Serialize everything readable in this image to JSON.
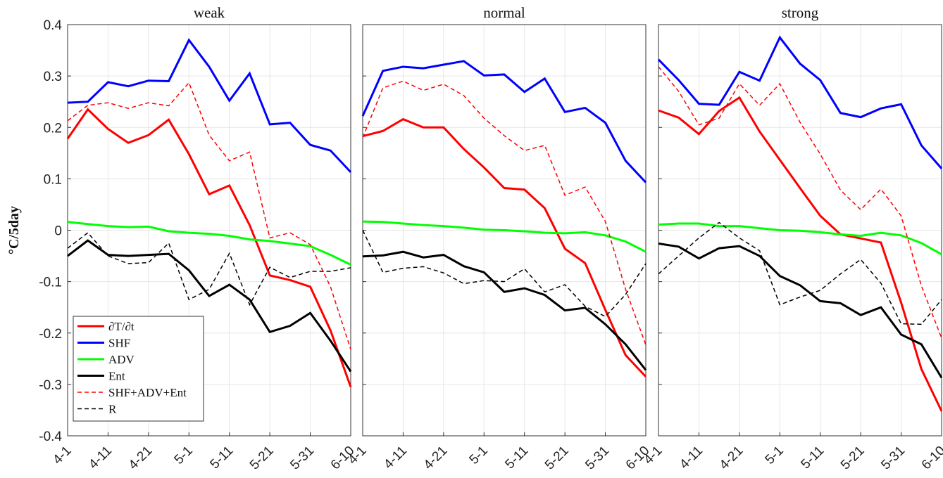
{
  "chart_data": [
    {
      "type": "line",
      "title": "weak",
      "ylabel": "°C/5day",
      "legend": "lower left",
      "grid": true,
      "categories": [
        "4-1",
        null,
        "4-11",
        null,
        "4-21",
        null,
        "5-1",
        null,
        "5-11",
        null,
        "5-21",
        null,
        "5-31",
        null,
        "6-10"
      ],
      "ylim": [
        -0.4,
        0.4
      ],
      "yticks": [
        -0.4,
        -0.3,
        -0.2,
        -0.1,
        0,
        0.1,
        0.2,
        0.3,
        0.4
      ],
      "series": [
        {
          "name": "∂T/∂t",
          "color": "#ff0000",
          "linestyle": "solid",
          "values": [
            0.178,
            0.235,
            0.197,
            0.17,
            0.185,
            0.215,
            0.148,
            0.07,
            0.087,
            0.01,
            -0.088,
            -0.097,
            -0.11,
            -0.195,
            -0.305
          ]
        },
        {
          "name": "SHF",
          "color": "#0000ff",
          "linestyle": "solid",
          "values": [
            0.248,
            0.25,
            0.288,
            0.28,
            0.291,
            0.29,
            0.37,
            0.318,
            0.252,
            0.305,
            0.206,
            0.209,
            0.166,
            0.155,
            0.113
          ]
        },
        {
          "name": "ADV",
          "color": "#00ff00",
          "linestyle": "solid",
          "values": [
            0.016,
            0.012,
            0.008,
            0.006,
            0.007,
            -0.002,
            -0.005,
            -0.007,
            -0.011,
            -0.018,
            -0.021,
            -0.026,
            -0.031,
            -0.048,
            -0.067
          ]
        },
        {
          "name": "Ent",
          "color": "#000000",
          "linestyle": "solid",
          "values": [
            -0.05,
            -0.02,
            -0.048,
            -0.05,
            -0.048,
            -0.046,
            -0.078,
            -0.128,
            -0.106,
            -0.135,
            -0.198,
            -0.186,
            -0.161,
            -0.215,
            -0.275
          ]
        },
        {
          "name": "SHF+ADV+Ent",
          "color": "#ff0000",
          "linestyle": "dashed",
          "values": [
            0.213,
            0.243,
            0.248,
            0.237,
            0.248,
            0.242,
            0.287,
            0.185,
            0.135,
            0.152,
            -0.015,
            -0.005,
            -0.028,
            -0.11,
            -0.232
          ]
        },
        {
          "name": "R",
          "color": "#000000",
          "linestyle": "dashed",
          "values": [
            -0.035,
            -0.005,
            -0.05,
            -0.065,
            -0.063,
            -0.025,
            -0.135,
            -0.115,
            -0.045,
            -0.145,
            -0.072,
            -0.092,
            -0.08,
            -0.08,
            -0.073
          ]
        }
      ]
    },
    {
      "type": "line",
      "title": "normal",
      "grid": true,
      "categories": [
        "4-1",
        null,
        "4-11",
        null,
        "4-21",
        null,
        "5-1",
        null,
        "5-11",
        null,
        "5-21",
        null,
        "5-31",
        null,
        "6-10"
      ],
      "ylim": [
        -0.4,
        0.4
      ],
      "yticks": [
        -0.4,
        -0.3,
        -0.2,
        -0.1,
        0,
        0.1,
        0.2,
        0.3,
        0.4
      ],
      "series": [
        {
          "name": "∂T/∂t",
          "color": "#ff0000",
          "linestyle": "solid",
          "values": [
            0.183,
            0.193,
            0.216,
            0.2,
            0.2,
            0.158,
            0.122,
            0.082,
            0.079,
            0.043,
            -0.036,
            -0.064,
            -0.155,
            -0.243,
            -0.285
          ]
        },
        {
          "name": "SHF",
          "color": "#0000ff",
          "linestyle": "solid",
          "values": [
            0.222,
            0.31,
            0.318,
            0.315,
            0.322,
            0.329,
            0.301,
            0.303,
            0.269,
            0.295,
            0.23,
            0.238,
            0.209,
            0.135,
            0.093
          ]
        },
        {
          "name": "ADV",
          "color": "#00ff00",
          "linestyle": "solid",
          "values": [
            0.017,
            0.016,
            0.013,
            0.01,
            0.008,
            0.005,
            0.001,
            0,
            -0.002,
            -0.005,
            -0.006,
            -0.004,
            -0.01,
            -0.022,
            -0.042
          ]
        },
        {
          "name": "Ent",
          "color": "#000000",
          "linestyle": "solid",
          "values": [
            -0.051,
            -0.049,
            -0.042,
            -0.053,
            -0.048,
            -0.07,
            -0.082,
            -0.12,
            -0.113,
            -0.126,
            -0.156,
            -0.151,
            -0.183,
            -0.222,
            -0.272
          ]
        },
        {
          "name": "SHF+ADV+Ent",
          "color": "#ff0000",
          "linestyle": "dashed",
          "values": [
            0.18,
            0.277,
            0.29,
            0.272,
            0.284,
            0.262,
            0.218,
            0.184,
            0.155,
            0.165,
            0.068,
            0.084,
            0.017,
            -0.115,
            -0.223
          ]
        },
        {
          "name": "R",
          "color": "#000000",
          "linestyle": "dashed",
          "values": [
            0,
            -0.082,
            -0.074,
            -0.071,
            -0.083,
            -0.104,
            -0.098,
            -0.1,
            -0.075,
            -0.12,
            -0.106,
            -0.148,
            -0.168,
            -0.125,
            -0.065
          ]
        }
      ]
    },
    {
      "type": "line",
      "title": "strong",
      "grid": true,
      "categories": [
        "4-1",
        null,
        "4-11",
        null,
        "4-21",
        null,
        "5-1",
        null,
        "5-11",
        null,
        "5-21",
        null,
        "5-31",
        null,
        "6-10"
      ],
      "ylim": [
        -0.4,
        0.4
      ],
      "yticks": [
        -0.4,
        -0.3,
        -0.2,
        -0.1,
        0,
        0.1,
        0.2,
        0.3,
        0.4
      ],
      "series": [
        {
          "name": "∂T/∂t",
          "color": "#ff0000",
          "linestyle": "solid",
          "values": [
            0.233,
            0.219,
            0.187,
            0.232,
            0.258,
            0.192,
            0.137,
            0.082,
            0.028,
            -0.008,
            -0.016,
            -0.024,
            -0.141,
            -0.27,
            -0.352
          ]
        },
        {
          "name": "SHF",
          "color": "#0000ff",
          "linestyle": "solid",
          "values": [
            0.332,
            0.292,
            0.246,
            0.244,
            0.308,
            0.291,
            0.375,
            0.324,
            0.292,
            0.228,
            0.22,
            0.237,
            0.245,
            0.165,
            0.12
          ]
        },
        {
          "name": "ADV",
          "color": "#00ff00",
          "linestyle": "solid",
          "values": [
            0.011,
            0.013,
            0.013,
            0.008,
            0.008,
            0.004,
            0,
            -0.001,
            -0.004,
            -0.008,
            -0.011,
            -0.005,
            -0.01,
            -0.025,
            -0.047
          ]
        },
        {
          "name": "Ent",
          "color": "#000000",
          "linestyle": "solid",
          "values": [
            -0.026,
            -0.032,
            -0.055,
            -0.035,
            -0.031,
            -0.05,
            -0.089,
            -0.107,
            -0.138,
            -0.142,
            -0.165,
            -0.15,
            -0.203,
            -0.222,
            -0.287
          ]
        },
        {
          "name": "SHF+ADV+Ent",
          "color": "#ff0000",
          "linestyle": "dashed",
          "values": [
            0.318,
            0.27,
            0.205,
            0.218,
            0.285,
            0.243,
            0.285,
            0.21,
            0.148,
            0.078,
            0.04,
            0.08,
            0.028,
            -0.108,
            -0.21
          ]
        },
        {
          "name": "R",
          "color": "#000000",
          "linestyle": "dashed",
          "values": [
            -0.085,
            -0.05,
            -0.015,
            0.015,
            -0.015,
            -0.04,
            -0.145,
            -0.13,
            -0.117,
            -0.085,
            -0.057,
            -0.103,
            -0.182,
            -0.183,
            -0.135
          ]
        }
      ]
    }
  ]
}
